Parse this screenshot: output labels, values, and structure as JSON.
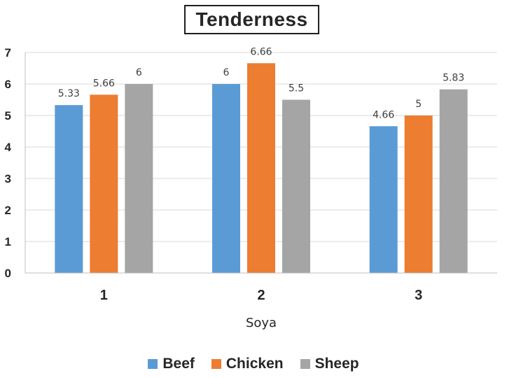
{
  "chart_data": {
    "type": "bar",
    "title": "Tenderness",
    "xlabel": "Soya",
    "ylabel": "",
    "categories": [
      "1",
      "2",
      "3"
    ],
    "series": [
      {
        "name": "Beef",
        "color": "#5B9BD5",
        "values": [
          5.33,
          6,
          4.66
        ],
        "labels": [
          "5.33",
          "6",
          "4.66"
        ]
      },
      {
        "name": "Chicken",
        "color": "#ED7D31",
        "values": [
          5.66,
          6.66,
          5
        ],
        "labels": [
          "5.66",
          "6.66",
          "5"
        ]
      },
      {
        "name": "Sheep",
        "color": "#A5A5A5",
        "values": [
          6,
          5.5,
          5.83
        ],
        "labels": [
          "6",
          "5.5",
          "5.83"
        ]
      }
    ],
    "ylim": [
      0,
      7
    ],
    "yticks": [
      "0",
      "1",
      "2",
      "3",
      "4",
      "5",
      "6",
      "7"
    ],
    "grid": true,
    "legend_position": "bottom"
  }
}
